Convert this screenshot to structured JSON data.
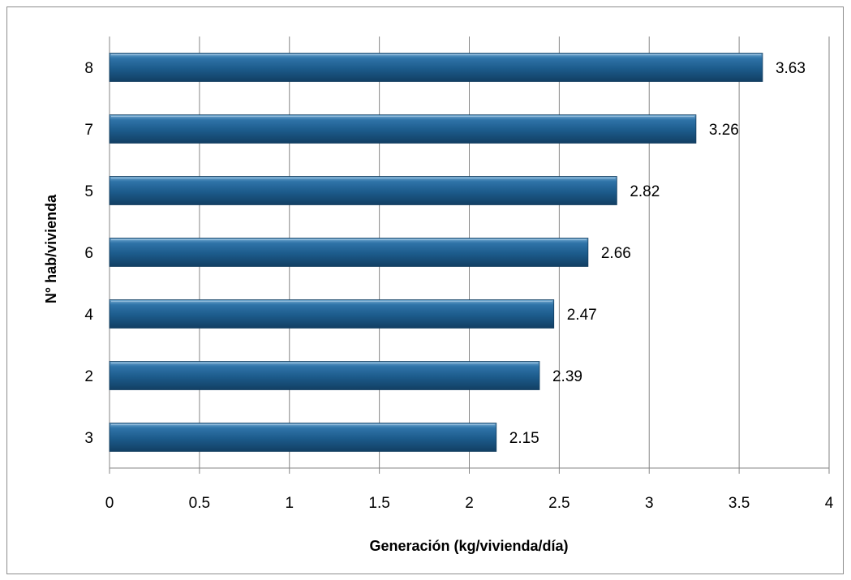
{
  "chart_data": {
    "type": "bar",
    "orientation": "horizontal",
    "categories": [
      "8",
      "7",
      "5",
      "6",
      "4",
      "2",
      "3"
    ],
    "values": [
      3.63,
      3.26,
      2.82,
      2.66,
      2.47,
      2.39,
      2.15
    ],
    "data_labels": [
      "3.63",
      "3.26",
      "2.82",
      "2.66",
      "2.47",
      "2.39",
      "2.15"
    ],
    "title": "",
    "xlabel": "Generación (kg/vivienda/día)",
    "ylabel": "N° hab/vivienda",
    "xlim": [
      0,
      4
    ],
    "x_ticks": [
      0,
      0.5,
      1,
      1.5,
      2,
      2.5,
      3,
      3.5,
      4
    ],
    "x_tick_labels": [
      "0",
      "0.5",
      "1",
      "1.5",
      "2",
      "2.5",
      "3",
      "3.5",
      "4"
    ],
    "grid": "vertical major gridlines",
    "legend": "none",
    "bar_color": "#1F5F8F",
    "gridline_color": "#868686"
  }
}
